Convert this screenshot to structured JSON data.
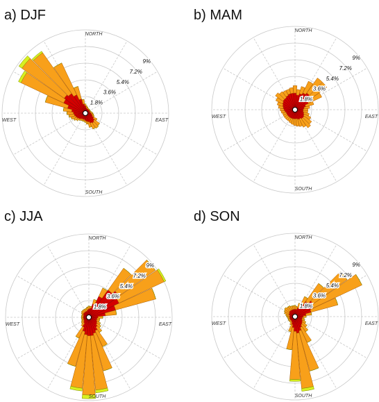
{
  "chart_data": [
    {
      "type": "windrose",
      "title": "a) DJF",
      "x": [
        0,
        10,
        20,
        30,
        40,
        50,
        60,
        70,
        80,
        90,
        100,
        110,
        120,
        130,
        140,
        150,
        160,
        170,
        180,
        190,
        200,
        210,
        220,
        230,
        240,
        250,
        260,
        270,
        280,
        290,
        300,
        310,
        320,
        330,
        340,
        350
      ],
      "rlim": [
        0,
        9
      ],
      "rticks": [
        {
          "value": 1.8,
          "label": "1.8%"
        },
        {
          "value": 3.6,
          "label": "3.6%"
        },
        {
          "value": 5.4,
          "label": "5.4%"
        },
        {
          "value": 7.2,
          "label": "7.2%"
        },
        {
          "value": 9,
          "label": "9%"
        }
      ],
      "direction_labels": [
        {
          "value": 0,
          "label": "NORTH"
        },
        {
          "value": 90,
          "label": "EAST"
        },
        {
          "value": 180,
          "label": "SOUTH"
        },
        {
          "value": 270,
          "label": "WEST"
        }
      ],
      "series": [
        {
          "color": "#d40000",
          "values": [
            0.8,
            0.6,
            0.5,
            0.5,
            0.5,
            0.5,
            0.5,
            0.5,
            0.5,
            0.6,
            0.7,
            0.8,
            1.0,
            1.2,
            1.3,
            1.2,
            1.0,
            0.9,
            0.8,
            0.7,
            0.7,
            0.7,
            0.8,
            0.9,
            1.0,
            1.1,
            1.2,
            1.3,
            1.5,
            2.0,
            2.6,
            2.8,
            2.6,
            2.2,
            1.6,
            1.0
          ]
        },
        {
          "color": "#f8a01a",
          "values": [
            0.2,
            0.2,
            0.2,
            0.1,
            0.1,
            0.1,
            0.1,
            0.1,
            0.2,
            0.2,
            0.2,
            0.2,
            0.4,
            0.7,
            0.7,
            0.7,
            0.6,
            0.3,
            0.2,
            0.2,
            0.2,
            0.2,
            0.2,
            0.3,
            0.4,
            0.5,
            0.6,
            0.7,
            0.9,
            2.5,
            5.1,
            5.6,
            5.4,
            3.8,
            1.4,
            0.5
          ]
        },
        {
          "color": "#d8f020",
          "values": [
            0,
            0,
            0,
            0,
            0,
            0,
            0,
            0,
            0,
            0,
            0,
            0,
            0,
            0,
            0,
            0,
            0,
            0,
            0,
            0,
            0,
            0,
            0,
            0,
            0,
            0,
            0,
            0,
            0,
            0,
            0.3,
            0.4,
            0.2,
            0,
            0,
            0
          ]
        }
      ]
    },
    {
      "type": "windrose",
      "title": "b) MAM",
      "x": [
        0,
        10,
        20,
        30,
        40,
        50,
        60,
        70,
        80,
        90,
        100,
        110,
        120,
        130,
        140,
        150,
        160,
        170,
        180,
        190,
        200,
        210,
        220,
        230,
        240,
        250,
        260,
        270,
        280,
        290,
        300,
        310,
        320,
        330,
        340,
        350
      ],
      "rlim": [
        0,
        9
      ],
      "rticks": [
        {
          "value": 1.8,
          "label": "1.8%"
        },
        {
          "value": 3.6,
          "label": "3.6%"
        },
        {
          "value": 5.4,
          "label": "5.4%"
        },
        {
          "value": 7.2,
          "label": "7.2%"
        },
        {
          "value": 9,
          "label": "9%"
        }
      ],
      "direction_labels": [
        {
          "value": 0,
          "label": "NORTH"
        },
        {
          "value": 90,
          "label": "EAST"
        },
        {
          "value": 180,
          "label": "SOUTH"
        },
        {
          "value": 270,
          "label": "WEST"
        }
      ],
      "series": [
        {
          "color": "#d40000",
          "values": [
            1.8,
            1.6,
            1.8,
            2.0,
            2.2,
            2.0,
            1.6,
            1.2,
            1.0,
            0.9,
            0.9,
            1.0,
            1.1,
            1.2,
            1.2,
            1.1,
            1.1,
            1.0,
            1.0,
            1.0,
            1.0,
            1.0,
            1.0,
            1.0,
            1.0,
            1.0,
            1.1,
            1.2,
            1.3,
            1.4,
            1.5,
            1.6,
            1.6,
            1.7,
            1.8,
            1.8
          ]
        },
        {
          "color": "#f8a01a",
          "values": [
            0.8,
            0.6,
            0.8,
            1.4,
            2.0,
            2.2,
            1.6,
            0.9,
            0.6,
            0.5,
            0.5,
            0.6,
            0.8,
            1.0,
            1.2,
            1.0,
            0.8,
            0.8,
            0.7,
            0.6,
            0.5,
            0.4,
            0.4,
            0.4,
            0.4,
            0.4,
            0.4,
            0.4,
            0.5,
            0.6,
            0.8,
            1.0,
            0.8,
            0.6,
            0.5,
            0.6
          ]
        }
      ]
    },
    {
      "type": "windrose",
      "title": "c) JJA",
      "x": [
        0,
        10,
        20,
        30,
        40,
        50,
        60,
        70,
        80,
        90,
        100,
        110,
        120,
        130,
        140,
        150,
        160,
        170,
        180,
        190,
        200,
        210,
        220,
        230,
        240,
        250,
        260,
        270,
        280,
        290,
        300,
        310,
        320,
        330,
        340,
        350
      ],
      "rlim": [
        0,
        9
      ],
      "rticks": [
        {
          "value": 1.8,
          "label": "1.8%"
        },
        {
          "value": 3.6,
          "label": "3.6%"
        },
        {
          "value": 5.4,
          "label": "5.4%"
        },
        {
          "value": 7.2,
          "label": "7.2%"
        },
        {
          "value": 9,
          "label": "9%"
        }
      ],
      "direction_labels": [
        {
          "value": 0,
          "label": "NORTH"
        },
        {
          "value": 90,
          "label": "EAST"
        },
        {
          "value": 180,
          "label": "SOUTH"
        },
        {
          "value": 270,
          "label": "WEST"
        }
      ],
      "series": [
        {
          "color": "#d40000",
          "values": [
            0.9,
            1.0,
            1.5,
            2.5,
            3.6,
            4.0,
            3.6,
            3.0,
            1.8,
            1.0,
            0.9,
            0.9,
            1.0,
            1.1,
            1.3,
            1.6,
            1.8,
            2.0,
            2.0,
            1.9,
            1.6,
            1.2,
            0.8,
            0.7,
            0.6,
            0.6,
            0.6,
            0.6,
            0.6,
            0.6,
            0.7,
            0.7,
            0.7,
            0.7,
            0.7,
            0.8
          ]
        },
        {
          "color": "#f8a01a",
          "values": [
            0.3,
            0.2,
            0.5,
            1.0,
            2.9,
            4.8,
            5.4,
            4.5,
            1.2,
            0.5,
            0.3,
            0.3,
            0.4,
            0.5,
            0.7,
            1.9,
            4.2,
            5.9,
            6.4,
            5.8,
            3.9,
            1.3,
            0.4,
            0.3,
            0.3,
            0.2,
            0.2,
            0.2,
            0.2,
            0.2,
            0.2,
            0.3,
            0.3,
            0.3,
            0.3,
            0.3
          ]
        },
        {
          "color": "#d8f020",
          "values": [
            0,
            0,
            0,
            0,
            0,
            0,
            0.2,
            0,
            0,
            0,
            0,
            0,
            0,
            0,
            0,
            0,
            0,
            0.3,
            0.4,
            0.3,
            0,
            0,
            0,
            0,
            0,
            0,
            0,
            0,
            0,
            0,
            0,
            0,
            0,
            0,
            0,
            0
          ]
        }
      ]
    },
    {
      "type": "windrose",
      "title": "d) SON",
      "x": [
        0,
        10,
        20,
        30,
        40,
        50,
        60,
        70,
        80,
        90,
        100,
        110,
        120,
        130,
        140,
        150,
        160,
        170,
        180,
        190,
        200,
        210,
        220,
        230,
        240,
        250,
        260,
        270,
        280,
        290,
        300,
        310,
        320,
        330,
        340,
        350
      ],
      "rlim": [
        0,
        9
      ],
      "rticks": [
        {
          "value": 1.8,
          "label": "1.8%"
        },
        {
          "value": 3.6,
          "label": "3.6%"
        },
        {
          "value": 5.4,
          "label": "5.4%"
        },
        {
          "value": 7.2,
          "label": "7.2%"
        },
        {
          "value": 9,
          "label": "9%"
        }
      ],
      "direction_labels": [
        {
          "value": 0,
          "label": "NORTH"
        },
        {
          "value": 90,
          "label": "EAST"
        },
        {
          "value": 180,
          "label": "SOUTH"
        },
        {
          "value": 270,
          "label": "WEST"
        }
      ],
      "series": [
        {
          "color": "#d40000",
          "values": [
            0.8,
            0.8,
            1.0,
            1.4,
            2.0,
            2.4,
            2.2,
            1.8,
            1.2,
            0.9,
            0.8,
            0.8,
            0.9,
            1.0,
            1.1,
            1.3,
            1.6,
            1.8,
            1.6,
            1.2,
            0.9,
            0.7,
            0.6,
            0.6,
            0.6,
            0.6,
            0.6,
            0.6,
            0.6,
            0.7,
            0.7,
            0.8,
            0.8,
            0.8,
            0.8,
            0.8
          ]
        },
        {
          "color": "#f8a01a",
          "values": [
            0.4,
            0.3,
            0.5,
            1.0,
            2.4,
            4.5,
            5.8,
            3.0,
            0.6,
            0.3,
            0.2,
            0.3,
            0.4,
            0.6,
            0.9,
            1.8,
            4.5,
            6.0,
            5.2,
            2.4,
            0.8,
            0.3,
            0.2,
            0.2,
            0.2,
            0.2,
            0.2,
            0.3,
            0.4,
            0.5,
            0.6,
            0.6,
            0.5,
            0.5,
            0.4,
            0.4
          ]
        },
        {
          "color": "#d8f020",
          "values": [
            0,
            0,
            0,
            0,
            0,
            0,
            0,
            0,
            0,
            0,
            0,
            0,
            0,
            0,
            0,
            0,
            0,
            0.3,
            0.2,
            0,
            0,
            0,
            0,
            0,
            0,
            0,
            0,
            0,
            0,
            0,
            0,
            0,
            0,
            0,
            0,
            0
          ]
        }
      ]
    }
  ]
}
